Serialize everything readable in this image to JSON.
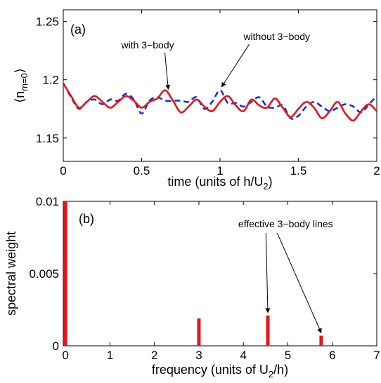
{
  "chart_data": [
    {
      "panel_label": "(a)",
      "type": "line",
      "xlabel": "time (units of h/U",
      "xlabel_sub": "2",
      "xlabel_end": ")",
      "ylabel_main": "⟨n",
      "ylabel_sub": "m=0",
      "ylabel_end": "⟩",
      "xlim": [
        0,
        2
      ],
      "ylim": [
        1.13,
        1.26
      ],
      "xticks": [
        0,
        0.5,
        1,
        1.5,
        2
      ],
      "xtick_labels": [
        "0",
        "0.5",
        "1",
        "1.5",
        "2"
      ],
      "yticks": [
        1.15,
        1.2,
        1.25
      ],
      "ytick_labels": [
        "1.15",
        "1.2",
        "1.25"
      ],
      "series": [
        {
          "name": "with 3−body",
          "color": "#e8141b",
          "dash": "solid",
          "x": [
            0,
            0.05,
            0.1,
            0.15,
            0.2,
            0.25,
            0.3,
            0.35,
            0.4,
            0.45,
            0.5,
            0.55,
            0.6,
            0.65,
            0.7,
            0.75,
            0.8,
            0.85,
            0.9,
            0.95,
            1.0,
            1.05,
            1.1,
            1.15,
            1.2,
            1.25,
            1.3,
            1.35,
            1.4,
            1.45,
            1.5,
            1.55,
            1.6,
            1.65,
            1.7,
            1.75,
            1.8,
            1.85,
            1.9,
            1.95,
            2.0
          ],
          "y": [
            1.197,
            1.186,
            1.176,
            1.181,
            1.186,
            1.181,
            1.176,
            1.181,
            1.186,
            1.182,
            1.176,
            1.181,
            1.184,
            1.191,
            1.182,
            1.172,
            1.177,
            1.183,
            1.177,
            1.173,
            1.181,
            1.186,
            1.178,
            1.173,
            1.183,
            1.178,
            1.176,
            1.184,
            1.176,
            1.168,
            1.175,
            1.181,
            1.176,
            1.167,
            1.173,
            1.181,
            1.171,
            1.165,
            1.173,
            1.179,
            1.173
          ]
        },
        {
          "name": "without 3−body",
          "color": "#1d2fd6",
          "dash": "dashed",
          "x": [
            0,
            0.05,
            0.1,
            0.15,
            0.2,
            0.25,
            0.3,
            0.35,
            0.4,
            0.45,
            0.5,
            0.55,
            0.6,
            0.65,
            0.7,
            0.75,
            0.8,
            0.85,
            0.9,
            0.95,
            1.0,
            1.05,
            1.1,
            1.15,
            1.2,
            1.25,
            1.3,
            1.35,
            1.4,
            1.45,
            1.5,
            1.55,
            1.6,
            1.65,
            1.7,
            1.75,
            1.8,
            1.85,
            1.9,
            1.95,
            2.0
          ],
          "y": [
            1.197,
            1.185,
            1.175,
            1.181,
            1.183,
            1.179,
            1.183,
            1.182,
            1.188,
            1.183,
            1.171,
            1.182,
            1.185,
            1.182,
            1.182,
            1.182,
            1.181,
            1.185,
            1.175,
            1.181,
            1.191,
            1.18,
            1.18,
            1.177,
            1.181,
            1.185,
            1.177,
            1.176,
            1.178,
            1.167,
            1.169,
            1.177,
            1.181,
            1.177,
            1.173,
            1.176,
            1.179,
            1.177,
            1.172,
            1.179,
            1.186
          ]
        }
      ],
      "annotations": [
        {
          "text": "with 3−body",
          "x": 0.37,
          "y": 1.227,
          "arrow_to": [
            0.67,
            1.19
          ]
        },
        {
          "text": "without 3−body",
          "x": 1.15,
          "y": 1.234,
          "arrow_to": [
            1.01,
            1.192
          ]
        }
      ],
      "grid": false
    },
    {
      "panel_label": "(b)",
      "type": "bar",
      "xlabel": "frequency (units of U",
      "xlabel_sub": "2",
      "xlabel_end": "/h)",
      "ylabel": "spectral weight",
      "xlim": [
        -0.05,
        7
      ],
      "ylim": [
        0,
        0.01
      ],
      "xticks": [
        0,
        1,
        2,
        3,
        4,
        5,
        6,
        7
      ],
      "xtick_labels": [
        "0",
        "1",
        "2",
        "3",
        "4",
        "5",
        "6",
        "7"
      ],
      "yticks": [
        0,
        0.005,
        0.01
      ],
      "ytick_labels": [
        "0",
        "0.005",
        "0.01"
      ],
      "bar_color": "#e8141b",
      "x": [
        0.0,
        3.0,
        4.55,
        5.75
      ],
      "values": [
        0.01,
        0.0019,
        0.0021,
        0.0007
      ],
      "annotations": [
        {
          "text": "effective 3−body lines",
          "x": 4.95,
          "y": 0.0082,
          "arrows_to": [
            [
              4.55,
              0.0023
            ],
            [
              5.75,
              0.0009
            ]
          ]
        }
      ],
      "grid": false
    }
  ]
}
